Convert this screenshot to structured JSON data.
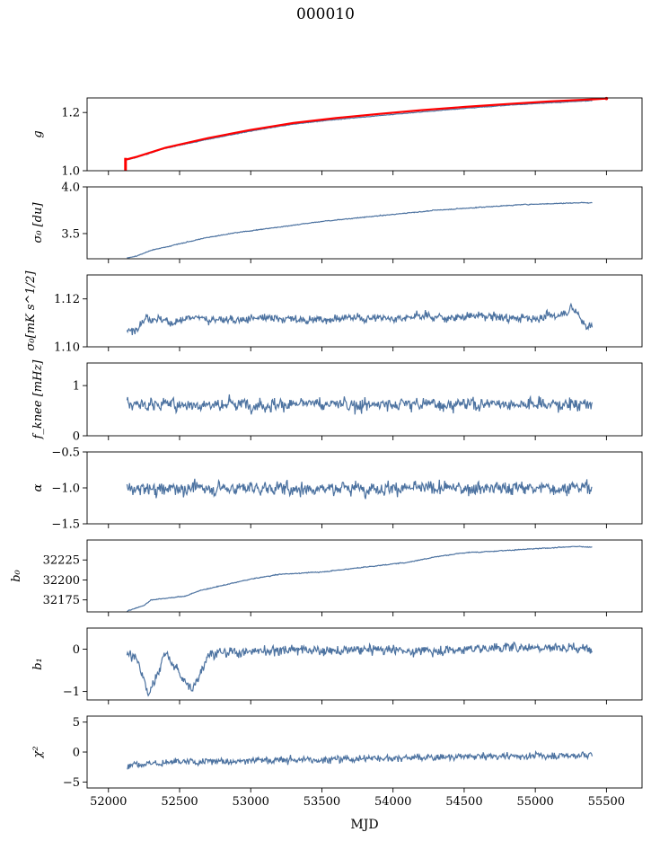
{
  "figure": {
    "title": "000010",
    "xlabel": "MJD"
  },
  "colors": {
    "series": "#4c72a0",
    "overlay": "#ff0000",
    "axes": "#000000"
  },
  "chart_data": [
    {
      "type": "line",
      "ylabel": "g",
      "ylim": [
        1.0,
        1.25
      ],
      "yticks": [
        1.0,
        1.2
      ],
      "ytick_labels": [
        "1.0",
        "1.2"
      ],
      "xlim": [
        51850,
        55750
      ],
      "series": [
        {
          "x": [
            52130,
            52200,
            52400,
            52700,
            53000,
            53300,
            53600,
            53900,
            54200,
            54500,
            54800,
            55100,
            55400
          ],
          "values": [
            1.037,
            1.046,
            1.077,
            1.108,
            1.136,
            1.16,
            1.176,
            1.189,
            1.202,
            1.214,
            1.225,
            1.233,
            1.241
          ]
        }
      ],
      "overlay": {
        "x": [
          52120,
          52200,
          52400,
          52700,
          53000,
          53300,
          53600,
          53900,
          54200,
          54500,
          54800,
          55100,
          55400,
          55500
        ],
        "values": [
          1.038,
          1.048,
          1.079,
          1.112,
          1.14,
          1.164,
          1.181,
          1.195,
          1.208,
          1.219,
          1.229,
          1.238,
          1.245,
          1.248
        ]
      }
    },
    {
      "type": "line",
      "ylabel": "σ₀ [du]",
      "ylim": [
        3.23,
        4.0
      ],
      "yticks": [
        3.5,
        4.0
      ],
      "ytick_labels": [
        "3.5",
        "4.0"
      ],
      "xlim": [
        51850,
        55750
      ],
      "series": [
        {
          "x": [
            52130,
            52200,
            52300,
            52500,
            52700,
            52900,
            53100,
            53300,
            53500,
            53700,
            53900,
            54100,
            54300,
            54500,
            54700,
            54900,
            55100,
            55300,
            55400
          ],
          "values": [
            3.24,
            3.26,
            3.32,
            3.39,
            3.46,
            3.51,
            3.55,
            3.59,
            3.63,
            3.66,
            3.69,
            3.72,
            3.75,
            3.77,
            3.79,
            3.81,
            3.82,
            3.83,
            3.83
          ]
        }
      ]
    },
    {
      "type": "line",
      "ylabel": "σ₀[mK s^1/2]",
      "ylim": [
        1.1,
        1.13
      ],
      "yticks": [
        1.1,
        1.12
      ],
      "ytick_labels": [
        "1.10",
        "1.12"
      ],
      "xlim": [
        51850,
        55750
      ],
      "series": [
        {
          "x": [
            52130,
            52180,
            52250,
            52350,
            52450,
            52600,
            52800,
            53000,
            53200,
            53400,
            53600,
            53800,
            54000,
            54200,
            54400,
            54600,
            54800,
            55000,
            55150,
            55250,
            55300,
            55350,
            55400
          ],
          "values": [
            1.106,
            1.107,
            1.112,
            1.112,
            1.11,
            1.112,
            1.111,
            1.112,
            1.112,
            1.111,
            1.112,
            1.112,
            1.112,
            1.113,
            1.112,
            1.113,
            1.112,
            1.112,
            1.113,
            1.116,
            1.114,
            1.109,
            1.109
          ]
        }
      ]
    },
    {
      "type": "line",
      "ylabel": "f_knee [mHz]",
      "ylim": [
        0,
        1.45
      ],
      "yticks": [
        0,
        1
      ],
      "ytick_labels": [
        "0",
        "1"
      ],
      "xlim": [
        51850,
        55750
      ],
      "series": [
        {
          "x": [
            52130,
            52400,
            52700,
            52900,
            53000,
            53300,
            53600,
            53900,
            54200,
            54500,
            54800,
            55100,
            55400
          ],
          "values": [
            0.62,
            0.63,
            0.62,
            0.64,
            0.63,
            0.62,
            0.63,
            0.62,
            0.64,
            0.63,
            0.64,
            0.63,
            0.62
          ]
        }
      ]
    },
    {
      "type": "line",
      "ylabel": "α",
      "ylim": [
        -1.5,
        -0.5
      ],
      "yticks": [
        -1.5,
        -1.0,
        -0.5
      ],
      "ytick_labels": [
        "−1.5",
        "−1.0",
        "−0.5"
      ],
      "xlim": [
        51850,
        55750
      ],
      "series": [
        {
          "x": [
            52130,
            52400,
            52700,
            53000,
            53300,
            53600,
            53900,
            54200,
            54500,
            54800,
            55100,
            55400
          ],
          "values": [
            -1.02,
            -1.01,
            -1.0,
            -1.0,
            -1.01,
            -1.0,
            -1.0,
            -1.01,
            -1.0,
            -1.0,
            -1.0,
            -0.99
          ]
        }
      ]
    },
    {
      "type": "line",
      "ylabel": "b₀",
      "ylim": [
        32160,
        32250
      ],
      "yticks": [
        32175,
        32200,
        32225
      ],
      "ytick_labels": [
        "32175",
        "32200",
        "32225"
      ],
      "xlim": [
        51850,
        55750
      ],
      "series": [
        {
          "x": [
            52130,
            52250,
            52300,
            52400,
            52550,
            52600,
            52650,
            52800,
            53000,
            53200,
            53500,
            53800,
            54100,
            54300,
            54500,
            54700,
            55000,
            55300,
            55400
          ],
          "values": [
            32161,
            32168,
            32175,
            32177,
            32180,
            32184,
            32187,
            32193,
            32201,
            32207,
            32210,
            32216,
            32222,
            32229,
            32234,
            32236,
            32239,
            32242,
            32241
          ]
        }
      ]
    },
    {
      "type": "line",
      "ylabel": "b₁",
      "ylim": [
        -1.2,
        0.5
      ],
      "yticks": [
        -1,
        0
      ],
      "ytick_labels": [
        "−1",
        "0"
      ],
      "xlim": [
        51850,
        55750
      ],
      "series": [
        {
          "x": [
            52130,
            52200,
            52280,
            52400,
            52590,
            52700,
            53000,
            53300,
            53600,
            53900,
            54200,
            54500,
            54800,
            55100,
            55400
          ],
          "values": [
            -0.1,
            -0.2,
            -1.1,
            -0.1,
            -1.0,
            -0.1,
            -0.05,
            0.0,
            -0.05,
            0.0,
            -0.05,
            0.0,
            0.05,
            0.05,
            0.0
          ]
        }
      ]
    },
    {
      "type": "line",
      "ylabel": "χ²",
      "ylim": [
        -6,
        6
      ],
      "yticks": [
        -5,
        0,
        5
      ],
      "ytick_labels": [
        "−5",
        "0",
        "5"
      ],
      "xlim": [
        51850,
        55750
      ],
      "xticks": [
        52000,
        52500,
        53000,
        53500,
        54000,
        54500,
        55000,
        55500
      ],
      "xtick_labels": [
        "52000",
        "52500",
        "53000",
        "53500",
        "54000",
        "54500",
        "55000",
        "55500"
      ],
      "series": [
        {
          "x": [
            52130,
            52400,
            52700,
            53000,
            53300,
            53600,
            53900,
            54200,
            54500,
            54800,
            55100,
            55400
          ],
          "values": [
            -2.0,
            -1.8,
            -1.6,
            -1.4,
            -1.3,
            -1.2,
            -1.0,
            -0.9,
            -0.8,
            -0.7,
            -0.6,
            -0.5
          ]
        }
      ]
    }
  ]
}
